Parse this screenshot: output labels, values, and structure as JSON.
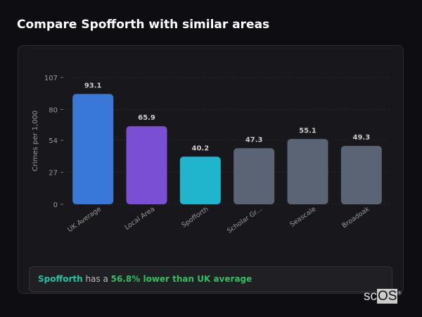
{
  "title": "Compare Spofforth with similar areas",
  "chart_data": {
    "type": "bar",
    "ylabel": "Crimes per 1,000",
    "ylim": [
      0,
      107
    ],
    "yticks": [
      0,
      27,
      54,
      80,
      107
    ],
    "categories": [
      "UK Average",
      "Local Area",
      "Spofforth",
      "Scholar Gr...",
      "Seascale",
      "Broadoak"
    ],
    "values": [
      93.1,
      65.9,
      40.2,
      47.3,
      55.1,
      49.3
    ],
    "value_labels": [
      "93.1",
      "65.9",
      "40.2",
      "47.3",
      "55.1",
      "49.3"
    ],
    "colors": [
      "#3a78d8",
      "#7b4fd1",
      "#1fb5cc",
      "#5a6475",
      "#5a6475",
      "#5a6475"
    ],
    "grid": true
  },
  "summary": {
    "area": "Spofforth",
    "middle": " has a ",
    "highlight": "56.8% lower than UK average"
  },
  "logo": {
    "text_a": "sc",
    "text_b": "OS",
    "mark": "®"
  }
}
